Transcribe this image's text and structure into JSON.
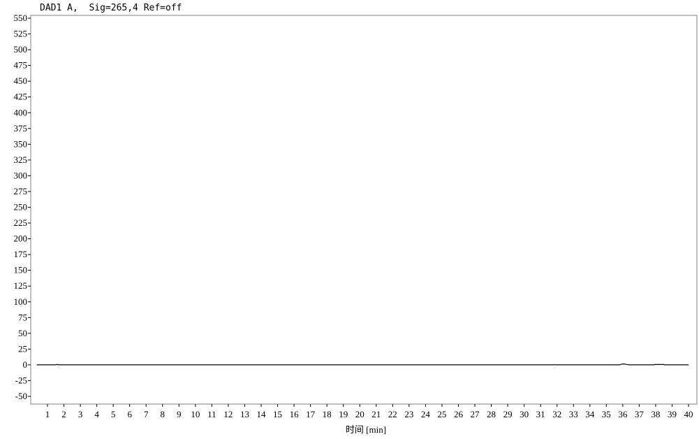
{
  "chart_data": {
    "type": "line",
    "title": "DAD1 A,  Sig=265,4 Ref=off",
    "xlabel": "时间 [min]",
    "ylabel": "",
    "xlim": [
      0.0,
      40.2
    ],
    "ylim": [
      -60,
      550
    ],
    "xticks": [
      1,
      2,
      3,
      4,
      5,
      6,
      7,
      8,
      9,
      10,
      11,
      12,
      13,
      14,
      15,
      16,
      17,
      18,
      19,
      20,
      21,
      22,
      23,
      24,
      25,
      26,
      27,
      28,
      29,
      30,
      31,
      32,
      33,
      34,
      35,
      36,
      37,
      38,
      39,
      40
    ],
    "yticks": [
      550,
      525,
      500,
      475,
      450,
      425,
      400,
      375,
      350,
      325,
      300,
      275,
      250,
      225,
      200,
      175,
      150,
      125,
      100,
      75,
      50,
      25,
      0,
      -25,
      -50
    ],
    "grid": false,
    "series": [
      {
        "color": "#000000",
        "x": [
          0.35,
          1.5,
          1.58,
          1.65,
          1.75,
          31.8,
          31.85,
          31.9,
          35.8,
          35.95,
          36.05,
          36.2,
          36.4,
          37.9,
          37.95,
          38.5,
          38.55,
          40.0
        ],
        "y": [
          0,
          0,
          0.8,
          0,
          0,
          0,
          0.4,
          0,
          0,
          1.2,
          1.5,
          0.8,
          0,
          0,
          0.6,
          0.6,
          0,
          0
        ]
      }
    ]
  }
}
